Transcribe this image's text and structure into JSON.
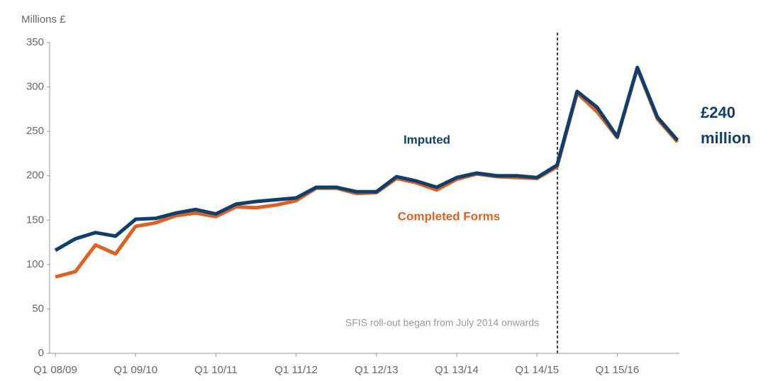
{
  "chart_data": {
    "type": "line",
    "y_axis_label": "Millions £",
    "categories": [
      "Q1 08/09",
      null,
      null,
      null,
      "Q1 09/10",
      null,
      null,
      null,
      "Q1 10/11",
      null,
      null,
      null,
      "Q1 11/12",
      null,
      null,
      null,
      "Q1 12/13",
      null,
      null,
      null,
      "Q1 13/14",
      null,
      null,
      null,
      "Q1 14/15",
      null,
      null,
      null,
      "Q1 15/16",
      null,
      null,
      null
    ],
    "series": [
      {
        "name": "Completed Forms",
        "color": "#e0601e",
        "values": [
          86,
          92,
          122,
          112,
          143,
          147,
          155,
          158,
          154,
          165,
          164,
          167,
          172,
          186,
          186,
          180,
          181,
          197,
          192,
          184,
          196,
          202,
          199,
          198,
          197,
          210,
          293,
          272,
          243,
          321,
          264,
          238
        ]
      },
      {
        "name": "Imputed",
        "color": "#0e3f6e",
        "values": [
          116,
          129,
          136,
          132,
          151,
          152,
          158,
          162,
          157,
          168,
          171,
          173,
          175,
          187,
          187,
          182,
          182,
          199,
          194,
          187,
          198,
          203,
          200,
          200,
          198,
          212,
          295,
          277,
          244,
          322,
          266,
          240
        ]
      }
    ],
    "ylim": [
      0,
      350
    ],
    "yticks": [
      0,
      50,
      100,
      150,
      200,
      250,
      300,
      350
    ],
    "grid": false,
    "annotation": "SFIS roll-out began from July 2014 onwards",
    "end_label": [
      "£240",
      "million"
    ]
  }
}
